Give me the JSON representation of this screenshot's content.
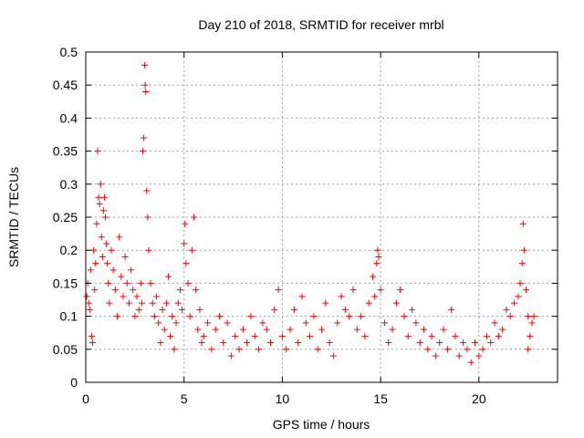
{
  "chart_data": {
    "type": "scatter",
    "title": "Day 210 of 2018, SRMTID for receiver mrbl",
    "xlabel": "GPS time / hours",
    "ylabel": "SRMTID / TECUs",
    "xlim": [
      0,
      24
    ],
    "ylim": [
      0,
      0.5
    ],
    "x_ticks": [
      0,
      5,
      10,
      15,
      20
    ],
    "x_tick_labels": [
      "0",
      "5",
      "10",
      "15",
      "20"
    ],
    "y_ticks": [
      0,
      0.05,
      0.1,
      0.15,
      0.2,
      0.25,
      0.3,
      0.35,
      0.4,
      0.45,
      0.5
    ],
    "y_tick_labels": [
      "0",
      "0.05",
      "0.1",
      "0.15",
      "0.2",
      "0.25",
      "0.3",
      "0.35",
      "0.4",
      "0.45",
      "0.5"
    ],
    "grid": true,
    "marker": "+",
    "marker_color": "#ff0000",
    "series": [
      {
        "name": "SRMTID",
        "points": [
          [
            0.05,
            0.13
          ],
          [
            0.1,
            0.15
          ],
          [
            0.15,
            0.12
          ],
          [
            0.2,
            0.11
          ],
          [
            0.25,
            0.17
          ],
          [
            0.3,
            0.07
          ],
          [
            0.35,
            0.06
          ],
          [
            0.4,
            0.2
          ],
          [
            0.45,
            0.14
          ],
          [
            0.5,
            0.18
          ],
          [
            0.55,
            0.24
          ],
          [
            0.6,
            0.35
          ],
          [
            0.65,
            0.28
          ],
          [
            0.7,
            0.27
          ],
          [
            0.75,
            0.3
          ],
          [
            0.8,
            0.22
          ],
          [
            0.85,
            0.19
          ],
          [
            0.9,
            0.26
          ],
          [
            0.95,
            0.28
          ],
          [
            1.0,
            0.25
          ],
          [
            1.05,
            0.21
          ],
          [
            1.1,
            0.18
          ],
          [
            1.15,
            0.15
          ],
          [
            1.2,
            0.12
          ],
          [
            1.3,
            0.2
          ],
          [
            1.4,
            0.17
          ],
          [
            1.5,
            0.14
          ],
          [
            1.6,
            0.1
          ],
          [
            1.7,
            0.22
          ],
          [
            1.8,
            0.16
          ],
          [
            1.9,
            0.13
          ],
          [
            2.0,
            0.19
          ],
          [
            2.1,
            0.15
          ],
          [
            2.2,
            0.12
          ],
          [
            2.3,
            0.17
          ],
          [
            2.4,
            0.14
          ],
          [
            2.5,
            0.1
          ],
          [
            2.6,
            0.13
          ],
          [
            2.7,
            0.11
          ],
          [
            2.8,
            0.15
          ],
          [
            2.85,
            0.12
          ],
          [
            2.9,
            0.35
          ],
          [
            2.95,
            0.37
          ],
          [
            3.0,
            0.48
          ],
          [
            3.02,
            0.45
          ],
          [
            3.05,
            0.44
          ],
          [
            3.1,
            0.29
          ],
          [
            3.15,
            0.25
          ],
          [
            3.2,
            0.2
          ],
          [
            3.3,
            0.15
          ],
          [
            3.4,
            0.12
          ],
          [
            3.5,
            0.1
          ],
          [
            3.6,
            0.13
          ],
          [
            3.7,
            0.09
          ],
          [
            3.8,
            0.06
          ],
          [
            3.9,
            0.11
          ],
          [
            4.0,
            0.08
          ],
          [
            4.1,
            0.12
          ],
          [
            4.2,
            0.16
          ],
          [
            4.3,
            0.07
          ],
          [
            4.4,
            0.1
          ],
          [
            4.5,
            0.05
          ],
          [
            4.6,
            0.09
          ],
          [
            4.7,
            0.12
          ],
          [
            4.8,
            0.14
          ],
          [
            4.9,
            0.11
          ],
          [
            5.0,
            0.21
          ],
          [
            5.05,
            0.24
          ],
          [
            5.1,
            0.18
          ],
          [
            5.2,
            0.15
          ],
          [
            5.3,
            0.1
          ],
          [
            5.4,
            0.2
          ],
          [
            5.5,
            0.25
          ],
          [
            5.6,
            0.14
          ],
          [
            5.7,
            0.08
          ],
          [
            5.8,
            0.11
          ],
          [
            5.9,
            0.06
          ],
          [
            6.0,
            0.07
          ],
          [
            6.2,
            0.09
          ],
          [
            6.4,
            0.05
          ],
          [
            6.6,
            0.08
          ],
          [
            6.8,
            0.1
          ],
          [
            7.0,
            0.06
          ],
          [
            7.2,
            0.09
          ],
          [
            7.4,
            0.04
          ],
          [
            7.6,
            0.07
          ],
          [
            7.8,
            0.05
          ],
          [
            8.0,
            0.08
          ],
          [
            8.2,
            0.06
          ],
          [
            8.4,
            0.1
          ],
          [
            8.6,
            0.07
          ],
          [
            8.8,
            0.05
          ],
          [
            9.0,
            0.09
          ],
          [
            9.2,
            0.08
          ],
          [
            9.4,
            0.06
          ],
          [
            9.6,
            0.11
          ],
          [
            9.8,
            0.14
          ],
          [
            10.0,
            0.07
          ],
          [
            10.2,
            0.05
          ],
          [
            10.4,
            0.08
          ],
          [
            10.6,
            0.11
          ],
          [
            10.8,
            0.06
          ],
          [
            11.0,
            0.13
          ],
          [
            11.2,
            0.09
          ],
          [
            11.4,
            0.07
          ],
          [
            11.6,
            0.1
          ],
          [
            11.8,
            0.05
          ],
          [
            12.0,
            0.08
          ],
          [
            12.2,
            0.12
          ],
          [
            12.4,
            0.06
          ],
          [
            12.6,
            0.04
          ],
          [
            12.8,
            0.09
          ],
          [
            13.0,
            0.13
          ],
          [
            13.2,
            0.11
          ],
          [
            13.4,
            0.1
          ],
          [
            13.6,
            0.14
          ],
          [
            13.8,
            0.08
          ],
          [
            14.0,
            0.1
          ],
          [
            14.2,
            0.07
          ],
          [
            14.4,
            0.12
          ],
          [
            14.6,
            0.16
          ],
          [
            14.7,
            0.13
          ],
          [
            14.8,
            0.18
          ],
          [
            14.85,
            0.2
          ],
          [
            14.9,
            0.19
          ],
          [
            15.0,
            0.14
          ],
          [
            15.2,
            0.09
          ],
          [
            15.4,
            0.06
          ],
          [
            15.6,
            0.08
          ],
          [
            15.8,
            0.12
          ],
          [
            16.0,
            0.14
          ],
          [
            16.2,
            0.1
          ],
          [
            16.4,
            0.07
          ],
          [
            16.6,
            0.11
          ],
          [
            16.8,
            0.09
          ],
          [
            17.0,
            0.06
          ],
          [
            17.2,
            0.08
          ],
          [
            17.4,
            0.05
          ],
          [
            17.6,
            0.07
          ],
          [
            17.8,
            0.04
          ],
          [
            18.0,
            0.06
          ],
          [
            18.2,
            0.08
          ],
          [
            18.4,
            0.05
          ],
          [
            18.6,
            0.11
          ],
          [
            18.8,
            0.07
          ],
          [
            19.0,
            0.04
          ],
          [
            19.2,
            0.06
          ],
          [
            19.4,
            0.05
          ],
          [
            19.6,
            0.03
          ],
          [
            19.8,
            0.06
          ],
          [
            20.0,
            0.04
          ],
          [
            20.2,
            0.05
          ],
          [
            20.4,
            0.07
          ],
          [
            20.6,
            0.06
          ],
          [
            20.8,
            0.09
          ],
          [
            21.0,
            0.07
          ],
          [
            21.2,
            0.08
          ],
          [
            21.4,
            0.11
          ],
          [
            21.6,
            0.1
          ],
          [
            21.8,
            0.12
          ],
          [
            22.0,
            0.13
          ],
          [
            22.1,
            0.15
          ],
          [
            22.2,
            0.18
          ],
          [
            22.25,
            0.24
          ],
          [
            22.3,
            0.2
          ],
          [
            22.4,
            0.14
          ],
          [
            22.5,
            0.1
          ],
          [
            22.6,
            0.07
          ],
          [
            22.7,
            0.09
          ],
          [
            22.8,
            0.1
          ],
          [
            22.5,
            0.05
          ]
        ]
      }
    ]
  }
}
